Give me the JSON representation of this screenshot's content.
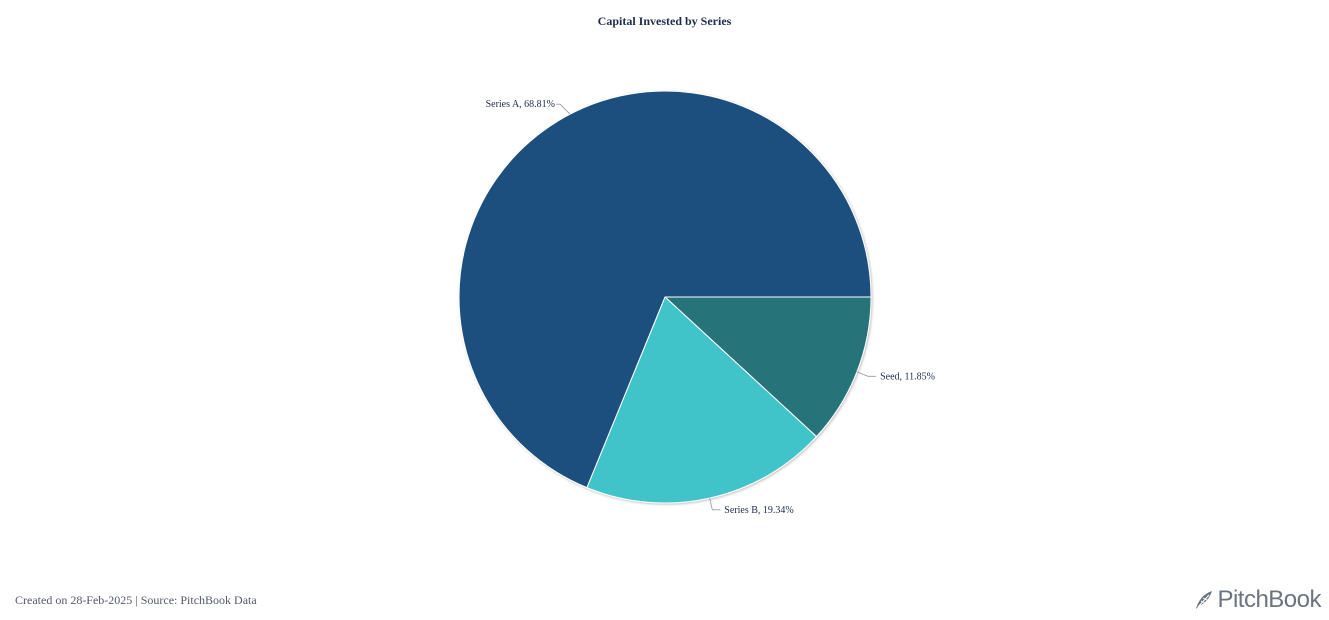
{
  "chart_data": {
    "type": "pie",
    "title": "Capital Invested by Series",
    "slices": [
      {
        "label": "Series A",
        "value": 68.81,
        "display": "Series A, 68.81%",
        "color": "#1f4f7e"
      },
      {
        "label": "Series B",
        "value": 19.34,
        "display": "Series B, 19.34%",
        "color": "#40c3c9"
      },
      {
        "label": "Seed",
        "value": 11.85,
        "display": "Seed, 11.85%",
        "color": "#25737a"
      }
    ]
  },
  "footer": {
    "note": "Created on 28-Feb-2025 | Source: PitchBook Data"
  },
  "brand": {
    "name": "PitchBook",
    "logo_icon": "pitchbook-feather-icon"
  }
}
